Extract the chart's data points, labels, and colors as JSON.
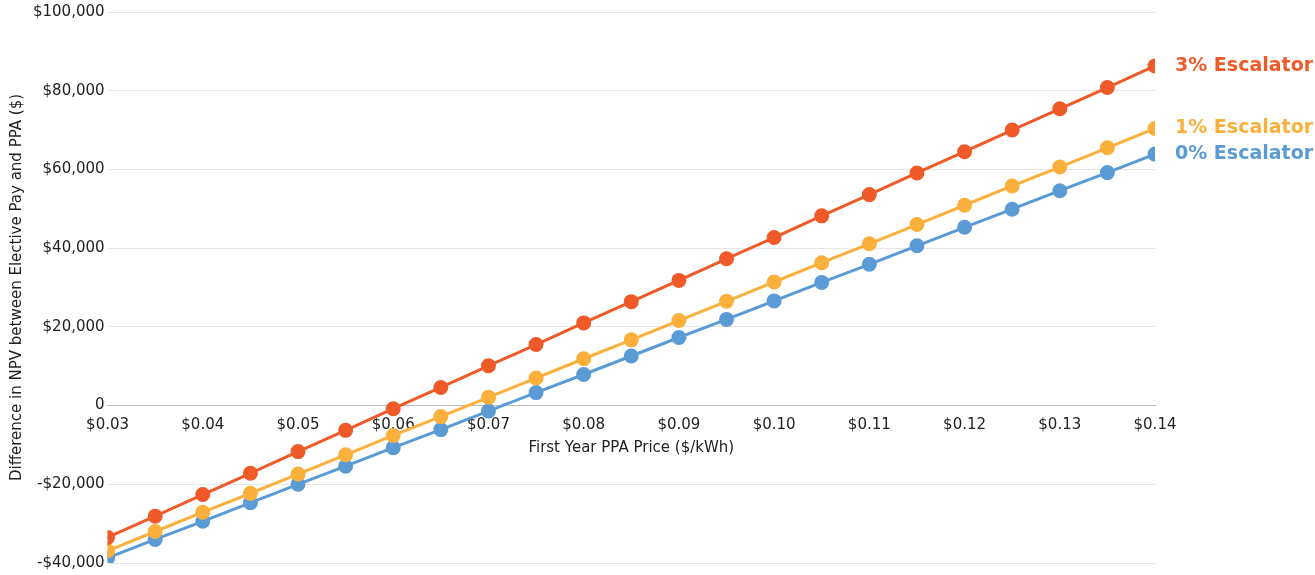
{
  "chart_data": {
    "type": "line",
    "xlabel": "First Year PPA Price ($/kWh)",
    "ylabel": "Difference in NPV between Elective Pay and PPA ($)",
    "x": [
      0.03,
      0.035,
      0.04,
      0.045,
      0.05,
      0.055,
      0.06,
      0.065,
      0.07,
      0.075,
      0.08,
      0.085,
      0.09,
      0.095,
      0.1,
      0.105,
      0.11,
      0.115,
      0.12,
      0.125,
      0.13,
      0.135,
      0.14
    ],
    "series": [
      {
        "name": "3% Escalator",
        "color": "#ef5a28",
        "values": [
          -33500,
          -28100,
          -22600,
          -17200,
          -11700,
          -6300,
          -800,
          4600,
          10100,
          15500,
          21000,
          26400,
          31800,
          37300,
          42700,
          48200,
          53600,
          59100,
          64500,
          70000,
          75400,
          80800,
          86300
        ]
      },
      {
        "name": "1% Escalator",
        "color": "#fbb03b",
        "values": [
          -36900,
          -32000,
          -27100,
          -22300,
          -17400,
          -12500,
          -7600,
          -2800,
          2100,
          7000,
          11900,
          16700,
          21600,
          26500,
          31400,
          36300,
          41100,
          46000,
          50900,
          55800,
          60600,
          65500,
          70400
        ]
      },
      {
        "name": "0% Escalator",
        "color": "#5b9bd5",
        "values": [
          -38700,
          -34000,
          -29400,
          -24700,
          -20000,
          -15400,
          -10700,
          -6100,
          -1400,
          3300,
          7900,
          12600,
          17300,
          21900,
          26600,
          31300,
          35900,
          40600,
          45300,
          49900,
          54600,
          59200,
          63900
        ]
      }
    ],
    "xlim": [
      0.03,
      0.14
    ],
    "xticks": [
      {
        "value": 0.03,
        "label": "$0.03"
      },
      {
        "value": 0.04,
        "label": "$0.04"
      },
      {
        "value": 0.05,
        "label": "$0.05"
      },
      {
        "value": 0.06,
        "label": "$0.06"
      },
      {
        "value": 0.07,
        "label": "$0.07"
      },
      {
        "value": 0.08,
        "label": "$0.08"
      },
      {
        "value": 0.09,
        "label": "$0.09"
      },
      {
        "value": 0.1,
        "label": "$0.10"
      },
      {
        "value": 0.11,
        "label": "$0.11"
      },
      {
        "value": 0.12,
        "label": "$0.12"
      },
      {
        "value": 0.13,
        "label": "$0.13"
      },
      {
        "value": 0.14,
        "label": "$0.14"
      }
    ],
    "ylim": [
      -40000,
      100000
    ],
    "yticks": [
      {
        "value": -40000,
        "label": "-$40,000"
      },
      {
        "value": -20000,
        "label": "-$20,000"
      },
      0,
      {
        "value": 20000,
        "label": "$20,000"
      },
      {
        "value": 40000,
        "label": "$40,000"
      },
      {
        "value": 60000,
        "label": "$60,000"
      },
      {
        "value": 80000,
        "label": "$80,000"
      },
      {
        "value": 100000,
        "label": "$100,000"
      }
    ],
    "grid": "y",
    "legend": false,
    "marker": "circle",
    "line_style": "solid"
  }
}
